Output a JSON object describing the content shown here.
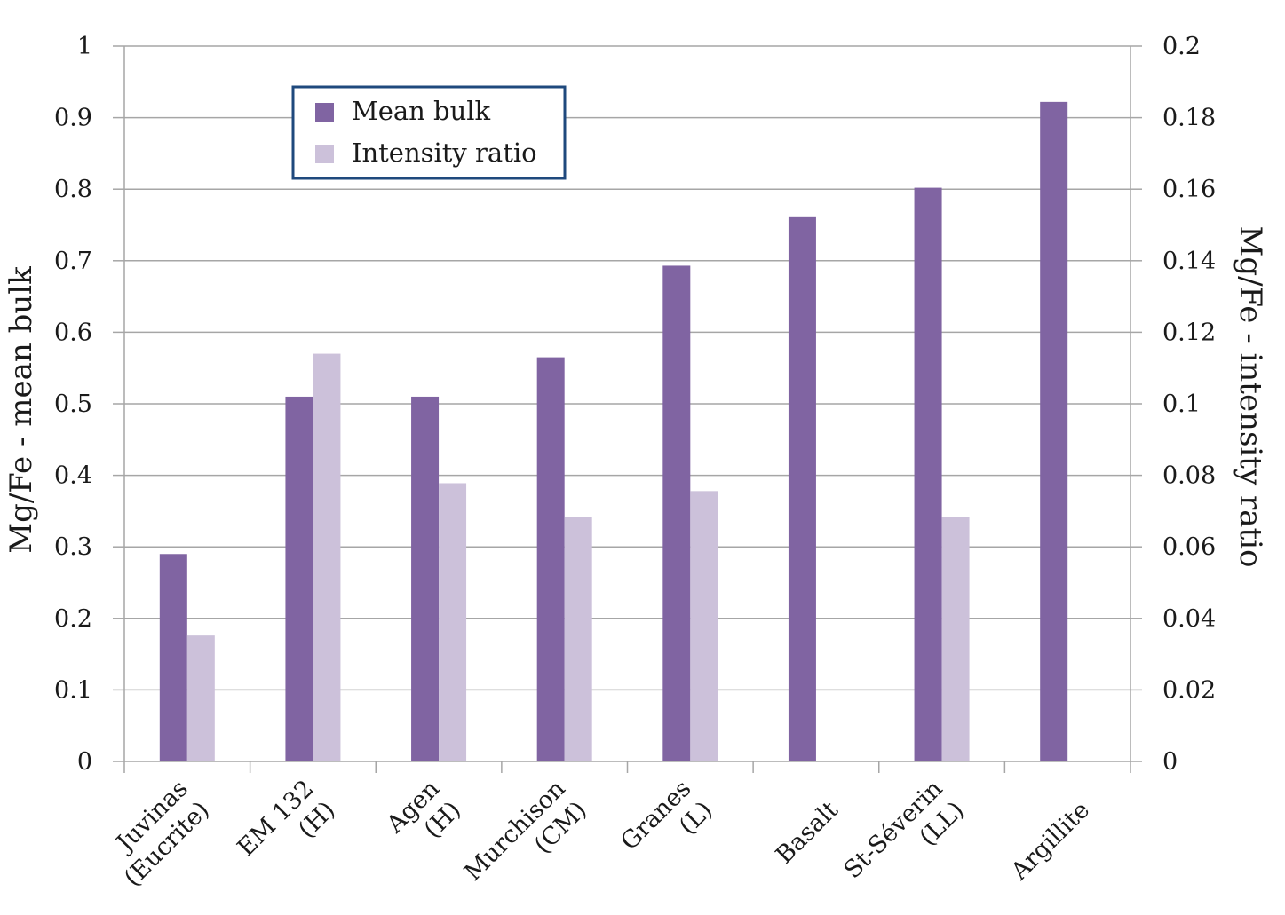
{
  "chart_data": {
    "type": "bar",
    "categories": [
      [
        "Juvinas",
        "(Eucrite)"
      ],
      [
        "EM 132",
        "(H)"
      ],
      [
        "Agen",
        "(H)"
      ],
      [
        "Murchison",
        "(CM)"
      ],
      [
        "Granes",
        "(L)"
      ],
      [
        "Basalt"
      ],
      [
        "St-Séverin",
        "(LL)"
      ],
      [
        "Argillite"
      ]
    ],
    "series": [
      {
        "name": "Mean bulk",
        "axis": "left",
        "color": "#8064a2",
        "values": [
          0.29,
          0.51,
          0.51,
          0.565,
          0.693,
          0.762,
          0.802,
          0.922
        ]
      },
      {
        "name": "Intensity ratio",
        "axis": "right",
        "color": "#ccc1da",
        "values": [
          0.0352,
          0.114,
          0.0778,
          0.0684,
          0.0756,
          null,
          0.0684,
          null
        ]
      }
    ],
    "ylabel": "Mg/Fe - mean bulk",
    "y2label": "Mg/Fe - intensity ratio",
    "ylim": [
      0,
      1
    ],
    "y2lim": [
      0,
      0.2
    ],
    "yticks": [
      "0",
      "0.1",
      "0.2",
      "0.3",
      "0.4",
      "0.5",
      "0.6",
      "0.7",
      "0.8",
      "0.9",
      "1"
    ],
    "y2ticks": [
      "0",
      "0.02",
      "0.04",
      "0.06",
      "0.08",
      "0.1",
      "0.12",
      "0.14",
      "0.16",
      "0.18",
      "0.2"
    ],
    "grid": true,
    "legend_position": "top-left",
    "legend_border_color": "#1f497d",
    "grid_color": "#a6a6a6"
  }
}
